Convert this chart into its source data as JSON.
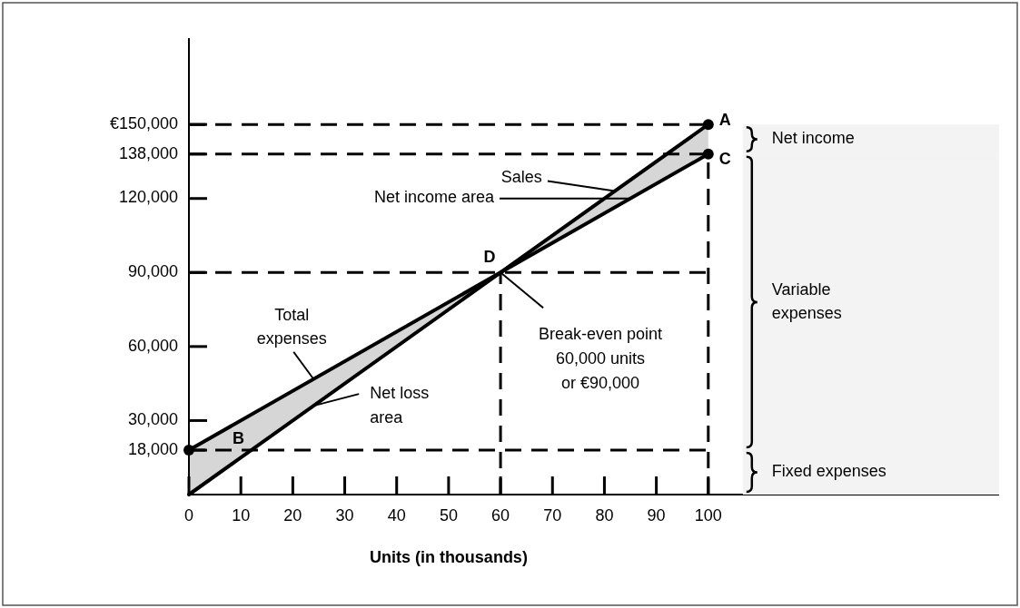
{
  "chart_data": {
    "type": "line",
    "xlabel": "Units (in thousands)",
    "xlim": [
      0,
      156
    ],
    "xticks": [
      0,
      10,
      20,
      30,
      40,
      50,
      60,
      70,
      80,
      90,
      100
    ],
    "ylim": [
      0,
      185000
    ],
    "yticks": [
      {
        "value": 18000,
        "label": "18,000"
      },
      {
        "value": 30000,
        "label": "30,000"
      },
      {
        "value": 60000,
        "label": "60,000"
      },
      {
        "value": 90000,
        "label": "90,000"
      },
      {
        "value": 120000,
        "label": "120,000"
      },
      {
        "value": 138000,
        "label": "138,000"
      },
      {
        "value": 150000,
        "label": "€150,000"
      }
    ],
    "line_style": "solid",
    "series": [
      {
        "name": "Sales",
        "color": "#000000",
        "x": [
          0,
          100
        ],
        "values": [
          0,
          150000
        ]
      },
      {
        "name": "Total expenses",
        "color": "#000000",
        "x": [
          0,
          60,
          100
        ],
        "values": [
          18000,
          90000,
          138000
        ],
        "lower": [
          0,
          90000,
          138000
        ],
        "upper": [
          18000,
          90000,
          150000
        ]
      },
      {
        "type": "scatter",
        "marker": "circle",
        "color": "#000000",
        "x": [
          0,
          100,
          100
        ],
        "values": [
          18000,
          150000,
          138000
        ]
      }
    ],
    "ref_lines": [
      {
        "axis": "y",
        "value": 150000,
        "line_style": "dashed"
      },
      {
        "axis": "y",
        "value": 138000,
        "line_style": "dashed"
      },
      {
        "axis": "y",
        "value": 90000,
        "line_style": "dashed"
      },
      {
        "axis": "y",
        "value": 18000,
        "line_style": "dashed"
      },
      {
        "axis": "x",
        "value": 60,
        "line_style": "dashed"
      },
      {
        "axis": "x",
        "value": 100,
        "line_style": "dashed"
      }
    ],
    "bands": [
      {
        "axis": "y",
        "from": 138000,
        "to": 150000,
        "label": "Net income"
      },
      {
        "axis": "y",
        "from": 18000,
        "to": 138000,
        "label": "Variable expenses"
      },
      {
        "axis": "y",
        "from": 0,
        "to": 18000,
        "label": "Fixed expenses"
      }
    ],
    "annotations": [
      {
        "text": "A",
        "x": 100,
        "y": 150000
      },
      {
        "text": "C",
        "x": 100,
        "y": 138000
      },
      {
        "text": "B",
        "x": 12,
        "y": 18000
      },
      {
        "text": "D",
        "x": 60,
        "y": 90000
      },
      {
        "text": "Net income area",
        "x": 85,
        "y": 120000
      },
      {
        "text": "Net loss\narea",
        "x": 24,
        "y": 36000
      },
      {
        "text": "Break-even point\n60,000 units\nor €90,000",
        "x": 60,
        "y": 90000
      }
    ]
  }
}
